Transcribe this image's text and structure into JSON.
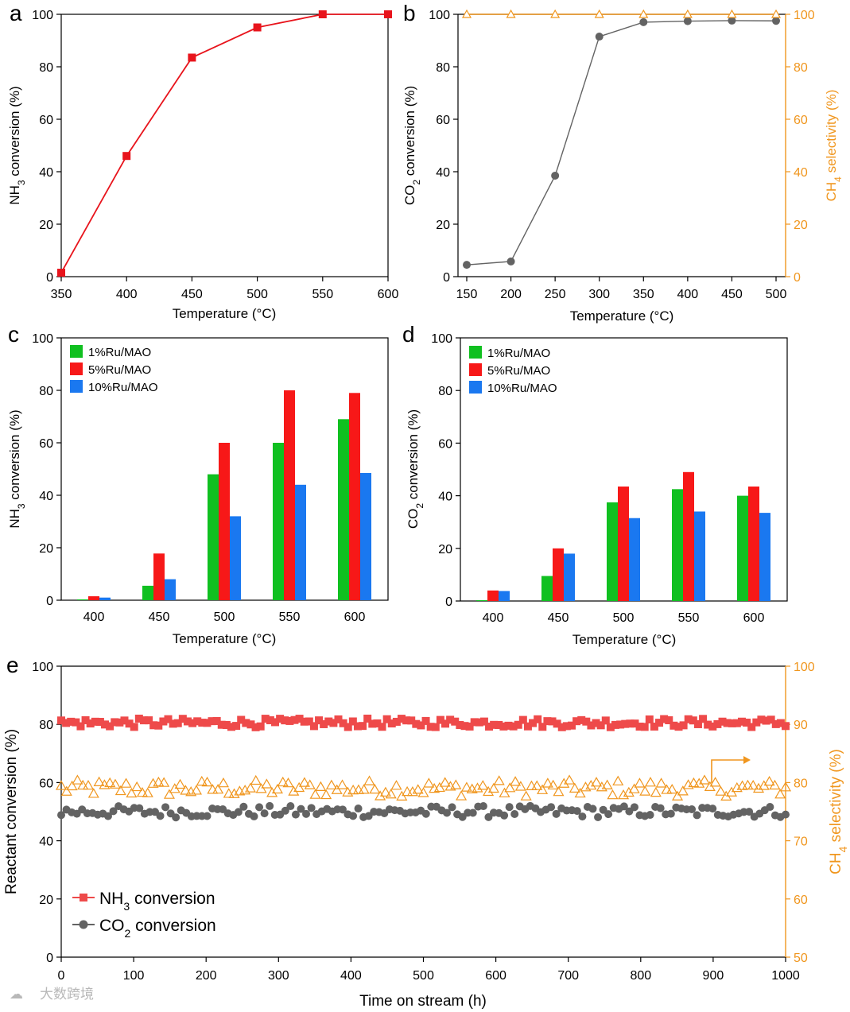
{
  "colors": {
    "red": "#E8141C",
    "gray": "#636363",
    "orange": "#F0961E",
    "green": "#10C020",
    "barred": "#F71818",
    "blue": "#1A78F0",
    "salmon": "#EE4A4A"
  },
  "watermark": "大数跨境",
  "chart_data": [
    {
      "id": "a",
      "panel": "a",
      "type": "line",
      "xlabel": "Temperature (°C)",
      "ylabel": "NH3 conversion (%)",
      "xlim": [
        350,
        600
      ],
      "ylim": [
        0,
        100
      ],
      "xticks": [
        350,
        400,
        450,
        500,
        550,
        600
      ],
      "yticks": [
        0,
        20,
        40,
        60,
        80,
        100
      ],
      "series": [
        {
          "name": "NH3 conversion",
          "marker": "square",
          "x": [
            350,
            400,
            450,
            500,
            550,
            600
          ],
          "values": [
            1.5,
            46,
            83.5,
            95,
            100,
            100
          ]
        }
      ]
    },
    {
      "id": "b",
      "panel": "b",
      "type": "line",
      "xlabel": "Temperature (°C)",
      "ylabel": "CO2 conversion (%)",
      "ylabel2": "CH4 selectivity (%)",
      "xlim": [
        150,
        500
      ],
      "ylim": [
        0,
        100
      ],
      "y2lim": [
        0,
        100
      ],
      "xticks": [
        150,
        200,
        250,
        300,
        350,
        400,
        450,
        500
      ],
      "yticks": [
        0,
        20,
        40,
        60,
        80,
        100
      ],
      "y2ticks": [
        0,
        20,
        40,
        60,
        80,
        100
      ],
      "series": [
        {
          "name": "CO2 conversion",
          "marker": "circle",
          "x": [
            150,
            200,
            250,
            300,
            350,
            400,
            450,
            500
          ],
          "values": [
            4.5,
            5.8,
            38.5,
            91.5,
            97,
            97.4,
            97.6,
            97.5
          ]
        },
        {
          "name": "CH4 selectivity",
          "marker": "triangle",
          "axis": "right",
          "x": [
            150,
            200,
            250,
            300,
            350,
            400,
            450,
            500
          ],
          "values": [
            100,
            100,
            100,
            100,
            100,
            100,
            100,
            100
          ]
        }
      ]
    },
    {
      "id": "c",
      "panel": "c",
      "type": "bar",
      "xlabel": "Temperature (°C)",
      "ylabel": "NH3 conversion (%)",
      "ylim": [
        0,
        100
      ],
      "yticks": [
        0,
        20,
        40,
        60,
        80,
        100
      ],
      "categories": [
        "400",
        "450",
        "500",
        "550",
        "600"
      ],
      "series": [
        {
          "name": "1%Ru/MAO",
          "values": [
            0.3,
            5.5,
            48,
            60,
            69
          ]
        },
        {
          "name": "5%Ru/MAO",
          "values": [
            1.5,
            17.8,
            60,
            80,
            79
          ]
        },
        {
          "name": "10%Ru/MAO",
          "values": [
            1,
            8,
            32,
            44,
            48.5
          ]
        }
      ]
    },
    {
      "id": "d",
      "panel": "d",
      "type": "bar",
      "xlabel": "Temperature (°C)",
      "ylabel": "CO2 conversion (%)",
      "ylim": [
        0,
        100
      ],
      "yticks": [
        0,
        20,
        40,
        60,
        80,
        100
      ],
      "categories": [
        "400",
        "450",
        "500",
        "550",
        "600"
      ],
      "series": [
        {
          "name": "1%Ru/MAO",
          "values": [
            0.3,
            9.5,
            37.5,
            42.5,
            40
          ]
        },
        {
          "name": "5%Ru/MAO",
          "values": [
            4,
            20,
            43.5,
            49,
            43.5
          ]
        },
        {
          "name": "10%Ru/MAO",
          "values": [
            3.8,
            18,
            31.5,
            34,
            33.5
          ]
        }
      ]
    },
    {
      "id": "e",
      "panel": "e",
      "type": "scatter",
      "xlabel": "Time on stream (h)",
      "ylabel": "Reactant conversion (%)",
      "ylabel2": "CH4 selectivity (%)",
      "xlim": [
        0,
        1000
      ],
      "ylim": [
        0,
        100
      ],
      "y2lim": [
        50,
        100
      ],
      "xticks": [
        0,
        100,
        200,
        300,
        400,
        500,
        600,
        700,
        800,
        900,
        1000
      ],
      "yticks": [
        0,
        20,
        40,
        60,
        80,
        100
      ],
      "y2ticks": [
        50,
        60,
        70,
        80,
        90,
        100
      ],
      "legend": [
        "NH3 conversion",
        "CO2 conversion"
      ],
      "legend_position": "bottom-left",
      "series": [
        {
          "name": "NH3 conversion",
          "marker": "square",
          "axis": "left",
          "x_range": [
            0,
            1000
          ],
          "mean": 80.5,
          "spread": 1.5,
          "count": 150
        },
        {
          "name": "CO2 conversion",
          "marker": "circle",
          "axis": "left",
          "x_range": [
            0,
            1000
          ],
          "mean": 50,
          "spread": 2,
          "count": 140
        },
        {
          "name": "CH4 selectivity",
          "marker": "triangle",
          "axis": "right",
          "x_range": [
            0,
            1000
          ],
          "mean": 79,
          "spread": 1.4,
          "count": 135
        }
      ]
    }
  ]
}
